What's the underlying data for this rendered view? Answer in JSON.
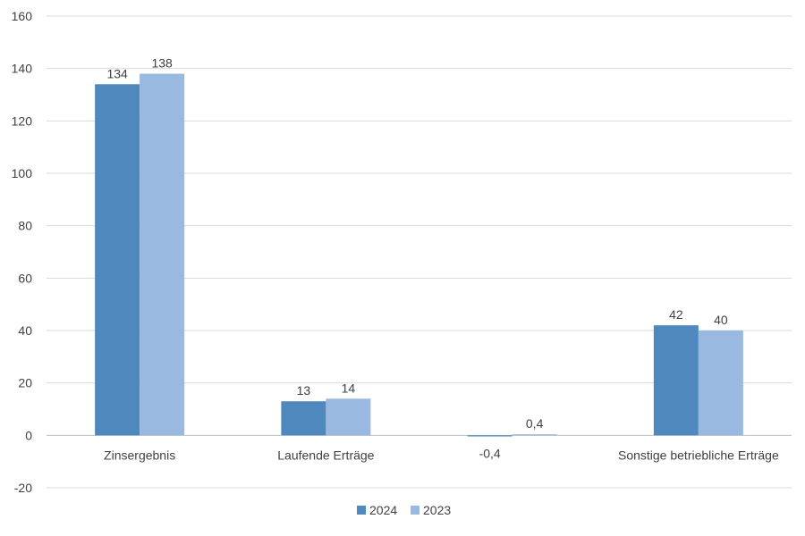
{
  "chart_data": {
    "type": "bar",
    "categories": [
      "Zinsergebnis",
      "Laufende Erträge",
      "",
      "Sonstige betriebliche Erträge"
    ],
    "series": [
      {
        "name": "2024",
        "color": "#4f88bd",
        "values": [
          134,
          13,
          -0.4,
          42
        ],
        "labels": [
          "134",
          "13",
          "-0,4",
          "42"
        ]
      },
      {
        "name": "2023",
        "color": "#9ab9e0",
        "values": [
          138,
          14,
          0.4,
          40
        ],
        "labels": [
          "138",
          "14",
          "0,4",
          "40"
        ]
      }
    ],
    "ylim": [
      -20,
      160
    ],
    "yticks": [
      -20,
      0,
      20,
      40,
      60,
      80,
      100,
      120,
      140,
      160
    ],
    "grid": true,
    "legend_position": "bottom"
  }
}
